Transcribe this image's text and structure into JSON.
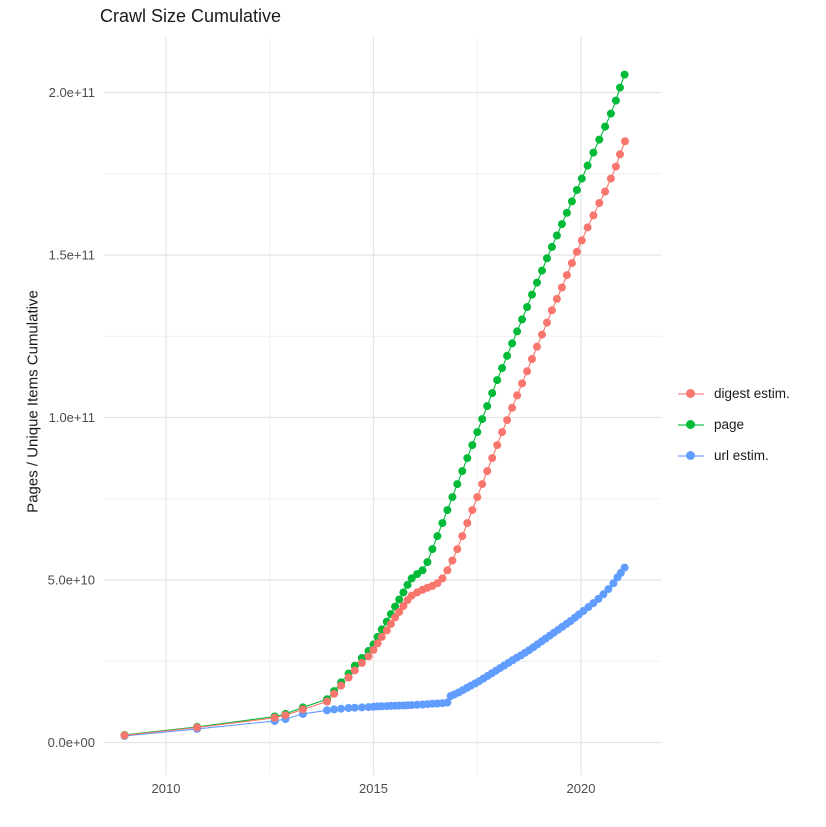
{
  "title": "Crawl Size Cumulative",
  "y_axis": {
    "title": "Pages / Unique Items Cumulative",
    "tick_labels": [
      "0.0e+00",
      "5.0e+10",
      "1.0e+11",
      "1.5e+11",
      "2.0e+11"
    ],
    "tick_values_billions": [
      0,
      50,
      100,
      150,
      200
    ],
    "minor_values_billions": [
      25,
      75,
      125,
      175
    ]
  },
  "x_axis": {
    "tick_labels": [
      "2010",
      "2015",
      "2020"
    ],
    "tick_values": [
      2010,
      2015,
      2020
    ],
    "minor_values": [
      2012.5,
      2017.5
    ]
  },
  "legend": {
    "items": [
      {
        "label": "digest estim.",
        "color": "#F8766D"
      },
      {
        "label": "page",
        "color": "#00BA38"
      },
      {
        "label": "url estim.",
        "color": "#619CFF"
      }
    ]
  },
  "colors": {
    "digest": "#F8766D",
    "page": "#00BA38",
    "url": "#619CFF",
    "grid_major": "#E4E4E4",
    "grid_minor": "#F0F0F0",
    "tick_text": "#4D4D4D"
  },
  "chart_data": {
    "type": "scatter",
    "title": "Crawl Size Cumulative",
    "xlabel": "",
    "ylabel": "Pages / Unique Items Cumulative",
    "value_unit": "billions of pages (1e9)",
    "x_range": [
      2008.7,
      2021.4
    ],
    "y_range_billions": [
      0,
      210
    ],
    "grid": true,
    "legend_position": "right",
    "series": [
      {
        "name": "page",
        "color": "#00BA38",
        "points": [
          [
            2009.0,
            2.3
          ],
          [
            2010.75,
            4.8
          ],
          [
            2012.62,
            8.0
          ],
          [
            2012.88,
            8.8
          ],
          [
            2013.3,
            10.8
          ],
          [
            2013.88,
            13.3
          ],
          [
            2014.05,
            15.8
          ],
          [
            2014.22,
            18.5
          ],
          [
            2014.4,
            21.2
          ],
          [
            2014.55,
            23.6
          ],
          [
            2014.72,
            26.0
          ],
          [
            2014.88,
            28.2
          ],
          [
            2015.0,
            30.2
          ],
          [
            2015.1,
            32.5
          ],
          [
            2015.2,
            34.8
          ],
          [
            2015.32,
            37.2
          ],
          [
            2015.42,
            39.5
          ],
          [
            2015.52,
            41.8
          ],
          [
            2015.62,
            44.0
          ],
          [
            2015.72,
            46.2
          ],
          [
            2015.82,
            48.5
          ],
          [
            2015.92,
            50.5
          ],
          [
            2016.05,
            51.8
          ],
          [
            2016.18,
            53.0
          ],
          [
            2016.3,
            55.5
          ],
          [
            2016.42,
            59.5
          ],
          [
            2016.54,
            63.5
          ],
          [
            2016.66,
            67.5
          ],
          [
            2016.78,
            71.5
          ],
          [
            2016.9,
            75.5
          ],
          [
            2017.02,
            79.5
          ],
          [
            2017.14,
            83.5
          ],
          [
            2017.26,
            87.5
          ],
          [
            2017.38,
            91.5
          ],
          [
            2017.5,
            95.5
          ],
          [
            2017.62,
            99.5
          ],
          [
            2017.74,
            103.5
          ],
          [
            2017.86,
            107.5
          ],
          [
            2017.98,
            111.5
          ],
          [
            2018.1,
            115.2
          ],
          [
            2018.22,
            119.0
          ],
          [
            2018.34,
            122.8
          ],
          [
            2018.46,
            126.5
          ],
          [
            2018.58,
            130.2
          ],
          [
            2018.7,
            134.0
          ],
          [
            2018.82,
            137.8
          ],
          [
            2018.94,
            141.5
          ],
          [
            2019.06,
            145.2
          ],
          [
            2019.18,
            149.0
          ],
          [
            2019.3,
            152.5
          ],
          [
            2019.42,
            156.0
          ],
          [
            2019.54,
            159.5
          ],
          [
            2019.66,
            163.0
          ],
          [
            2019.78,
            166.5
          ],
          [
            2019.9,
            170.0
          ],
          [
            2020.02,
            173.5
          ],
          [
            2020.16,
            177.5
          ],
          [
            2020.3,
            181.5
          ],
          [
            2020.44,
            185.5
          ],
          [
            2020.58,
            189.5
          ],
          [
            2020.72,
            193.5
          ],
          [
            2020.84,
            197.5
          ],
          [
            2020.94,
            201.5
          ],
          [
            2021.05,
            205.5
          ]
        ]
      },
      {
        "name": "digest estim.",
        "color": "#F8766D",
        "points": [
          [
            2009.0,
            2.2
          ],
          [
            2010.75,
            4.6
          ],
          [
            2012.62,
            7.6
          ],
          [
            2012.88,
            8.4
          ],
          [
            2013.3,
            10.2
          ],
          [
            2013.88,
            12.6
          ],
          [
            2014.05,
            15.0
          ],
          [
            2014.22,
            17.5
          ],
          [
            2014.4,
            20.0
          ],
          [
            2014.55,
            22.2
          ],
          [
            2014.72,
            24.5
          ],
          [
            2014.88,
            26.5
          ],
          [
            2015.0,
            28.5
          ],
          [
            2015.1,
            30.5
          ],
          [
            2015.2,
            32.5
          ],
          [
            2015.32,
            34.5
          ],
          [
            2015.42,
            36.5
          ],
          [
            2015.52,
            38.5
          ],
          [
            2015.62,
            40.2
          ],
          [
            2015.72,
            42.0
          ],
          [
            2015.82,
            43.8
          ],
          [
            2015.92,
            45.2
          ],
          [
            2016.05,
            46.2
          ],
          [
            2016.18,
            47.0
          ],
          [
            2016.3,
            47.6
          ],
          [
            2016.42,
            48.2
          ],
          [
            2016.54,
            49.0
          ],
          [
            2016.66,
            50.5
          ],
          [
            2016.78,
            53.0
          ],
          [
            2016.9,
            56.0
          ],
          [
            2017.02,
            59.5
          ],
          [
            2017.14,
            63.5
          ],
          [
            2017.26,
            67.5
          ],
          [
            2017.38,
            71.5
          ],
          [
            2017.5,
            75.5
          ],
          [
            2017.62,
            79.5
          ],
          [
            2017.74,
            83.5
          ],
          [
            2017.86,
            87.5
          ],
          [
            2017.98,
            91.5
          ],
          [
            2018.1,
            95.5
          ],
          [
            2018.22,
            99.2
          ],
          [
            2018.34,
            103.0
          ],
          [
            2018.46,
            106.8
          ],
          [
            2018.58,
            110.5
          ],
          [
            2018.7,
            114.2
          ],
          [
            2018.82,
            118.0
          ],
          [
            2018.94,
            121.8
          ],
          [
            2019.06,
            125.5
          ],
          [
            2019.18,
            129.2
          ],
          [
            2019.3,
            133.0
          ],
          [
            2019.42,
            136.5
          ],
          [
            2019.54,
            140.0
          ],
          [
            2019.66,
            143.8
          ],
          [
            2019.78,
            147.5
          ],
          [
            2019.9,
            151.0
          ],
          [
            2020.02,
            154.5
          ],
          [
            2020.16,
            158.5
          ],
          [
            2020.3,
            162.2
          ],
          [
            2020.44,
            166.0
          ],
          [
            2020.58,
            169.5
          ],
          [
            2020.72,
            173.5
          ],
          [
            2020.84,
            177.2
          ],
          [
            2020.94,
            181.0
          ],
          [
            2021.06,
            185.0
          ]
        ]
      },
      {
        "name": "url estim.",
        "color": "#619CFF",
        "points": [
          [
            2009.0,
            2.0
          ],
          [
            2010.75,
            4.2
          ],
          [
            2012.62,
            6.6
          ],
          [
            2012.88,
            7.2
          ],
          [
            2013.3,
            8.8
          ],
          [
            2013.88,
            9.9
          ],
          [
            2014.05,
            10.2
          ],
          [
            2014.22,
            10.4
          ],
          [
            2014.4,
            10.6
          ],
          [
            2014.55,
            10.7
          ],
          [
            2014.72,
            10.8
          ],
          [
            2014.88,
            10.9
          ],
          [
            2015.0,
            11.0
          ],
          [
            2015.1,
            11.1
          ],
          [
            2015.2,
            11.15
          ],
          [
            2015.32,
            11.2
          ],
          [
            2015.42,
            11.25
          ],
          [
            2015.52,
            11.3
          ],
          [
            2015.62,
            11.35
          ],
          [
            2015.72,
            11.4
          ],
          [
            2015.82,
            11.45
          ],
          [
            2015.92,
            11.5
          ],
          [
            2016.05,
            11.6
          ],
          [
            2016.18,
            11.7
          ],
          [
            2016.3,
            11.8
          ],
          [
            2016.42,
            11.9
          ],
          [
            2016.54,
            12.0
          ],
          [
            2016.66,
            12.1
          ],
          [
            2016.78,
            12.3
          ],
          [
            2016.86,
            14.3
          ],
          [
            2016.95,
            14.8
          ],
          [
            2017.05,
            15.4
          ],
          [
            2017.15,
            16.1
          ],
          [
            2017.25,
            16.8
          ],
          [
            2017.35,
            17.5
          ],
          [
            2017.45,
            18.2
          ],
          [
            2017.55,
            18.9
          ],
          [
            2017.65,
            19.7
          ],
          [
            2017.75,
            20.5
          ],
          [
            2017.85,
            21.3
          ],
          [
            2017.95,
            22.1
          ],
          [
            2018.05,
            22.9
          ],
          [
            2018.15,
            23.7
          ],
          [
            2018.25,
            24.5
          ],
          [
            2018.35,
            25.3
          ],
          [
            2018.45,
            26.1
          ],
          [
            2018.55,
            26.8
          ],
          [
            2018.65,
            27.6
          ],
          [
            2018.75,
            28.4
          ],
          [
            2018.85,
            29.3
          ],
          [
            2018.95,
            30.2
          ],
          [
            2019.05,
            31.1
          ],
          [
            2019.15,
            32.0
          ],
          [
            2019.25,
            32.9
          ],
          [
            2019.35,
            33.8
          ],
          [
            2019.45,
            34.7
          ],
          [
            2019.55,
            35.6
          ],
          [
            2019.65,
            36.5
          ],
          [
            2019.75,
            37.4
          ],
          [
            2019.85,
            38.4
          ],
          [
            2019.95,
            39.4
          ],
          [
            2020.06,
            40.5
          ],
          [
            2020.18,
            41.7
          ],
          [
            2020.3,
            42.9
          ],
          [
            2020.42,
            44.2
          ],
          [
            2020.54,
            45.6
          ],
          [
            2020.66,
            47.2
          ],
          [
            2020.78,
            49.0
          ],
          [
            2020.88,
            50.8
          ],
          [
            2020.96,
            52.2
          ],
          [
            2021.05,
            53.8
          ]
        ]
      }
    ]
  }
}
